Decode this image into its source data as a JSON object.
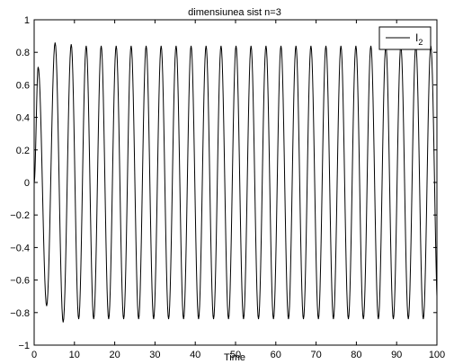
{
  "chart_data": {
    "type": "line",
    "title": "dimensiunea sist n=3",
    "xlabel": "Time",
    "ylabel": "",
    "xlim": [
      0,
      100
    ],
    "ylim": [
      -1,
      1
    ],
    "xticks": [
      0,
      10,
      20,
      30,
      40,
      50,
      60,
      70,
      80,
      90,
      100
    ],
    "yticks": [
      -1,
      -0.8,
      -0.6,
      -0.4,
      -0.2,
      0,
      0.2,
      0.4,
      0.6,
      0.8,
      1
    ],
    "xtick_labels": [
      "0",
      "10",
      "20",
      "30",
      "40",
      "50",
      "60",
      "70",
      "80",
      "90",
      "100"
    ],
    "ytick_labels": [
      "−1",
      "−0.8",
      "−0.6",
      "−0.4",
      "−0.2",
      "0",
      "0.2",
      "0.4",
      "0.6",
      "0.8",
      "1"
    ],
    "grid": false,
    "legend_position": "top-right",
    "series": [
      {
        "name": "I",
        "name_subscript": "2",
        "color": "#000000",
        "signal": {
          "kind": "damped-sine",
          "period": 3.72,
          "steady_amplitude": 0.84,
          "first_peaks": [
            {
              "x": 1.0,
              "y": 0.71
            },
            {
              "x": 3.1,
              "y": -0.76
            },
            {
              "x": 5.2,
              "y": 0.86
            },
            {
              "x": 7.2,
              "y": -0.86
            },
            {
              "x": 9.2,
              "y": 0.85
            }
          ],
          "start": [
            0,
            0
          ]
        }
      }
    ]
  }
}
